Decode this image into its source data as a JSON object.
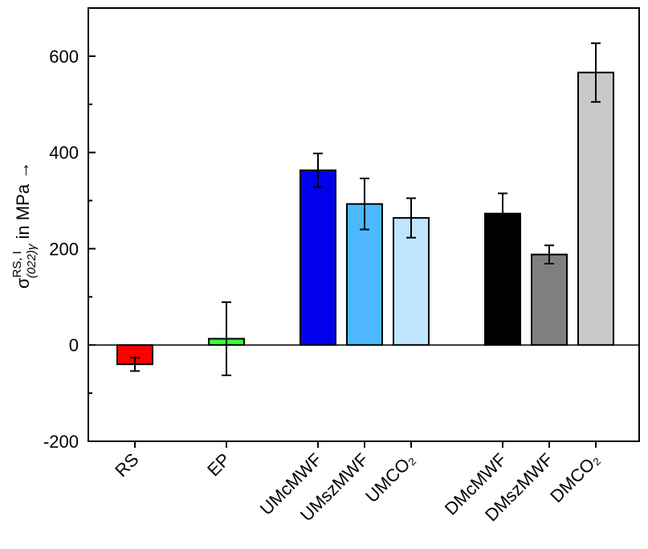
{
  "chart_data": {
    "type": "bar",
    "ylabel": "σ(022)γ RS, I in MPa →",
    "ylabel_parts": {
      "symbol": "σ",
      "superscript": "RS, I",
      "subscript": "(022)γ",
      "tail": " in MPa →"
    },
    "ylim": [
      -200,
      700
    ],
    "yticks": [
      -200,
      0,
      200,
      400,
      600
    ],
    "ytick_labels": [
      "-200",
      "0",
      "200",
      "400",
      "600"
    ],
    "grid": false,
    "categories": [
      "RS",
      "EP",
      "UMcMWF",
      "UMszMWF",
      "UMCO₂",
      "DMcMWF",
      "DMszMWF",
      "DMCO₂"
    ],
    "values": [
      -40,
      13,
      363,
      293,
      264,
      273,
      188,
      566
    ],
    "errors": [
      14,
      76,
      35,
      53,
      41,
      42,
      19,
      61
    ],
    "colors": [
      "#ff0000",
      "#33ff33",
      "#0000ee",
      "#4db8ff",
      "#bfe6ff",
      "#000000",
      "#7f7f7f",
      "#c8c8c8"
    ]
  }
}
